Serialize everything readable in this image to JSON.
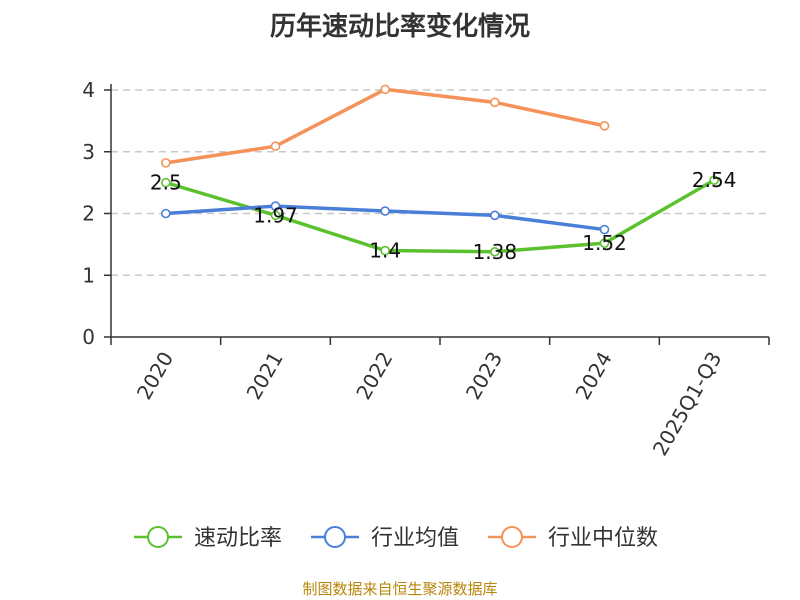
{
  "chart_data": {
    "type": "line",
    "title": "历年速动比率变化情况",
    "categories": [
      "2020",
      "2021",
      "2022",
      "2023",
      "2024",
      "2025Q1-Q3"
    ],
    "ylim": [
      0,
      4
    ],
    "yticks": [
      0,
      1,
      2,
      3,
      4
    ],
    "grid": true,
    "legend_position": "bottom",
    "series": [
      {
        "name": "速动比率",
        "color": "#5cc12e",
        "values": [
          2.5,
          1.97,
          1.4,
          1.38,
          1.52,
          2.54
        ],
        "labels": [
          "2.5",
          "1.97",
          "1.4",
          "1.38",
          "1.52",
          "2.54"
        ]
      },
      {
        "name": "行业均值",
        "color": "#4a7fd8",
        "values": [
          2.0,
          2.12,
          2.04,
          1.97,
          1.74,
          null
        ]
      },
      {
        "name": "行业中位数",
        "color": "#f5925a",
        "values": [
          2.82,
          3.09,
          4.01,
          3.8,
          3.42,
          null
        ]
      }
    ]
  },
  "source": "制图数据来自恒生聚源数据库"
}
